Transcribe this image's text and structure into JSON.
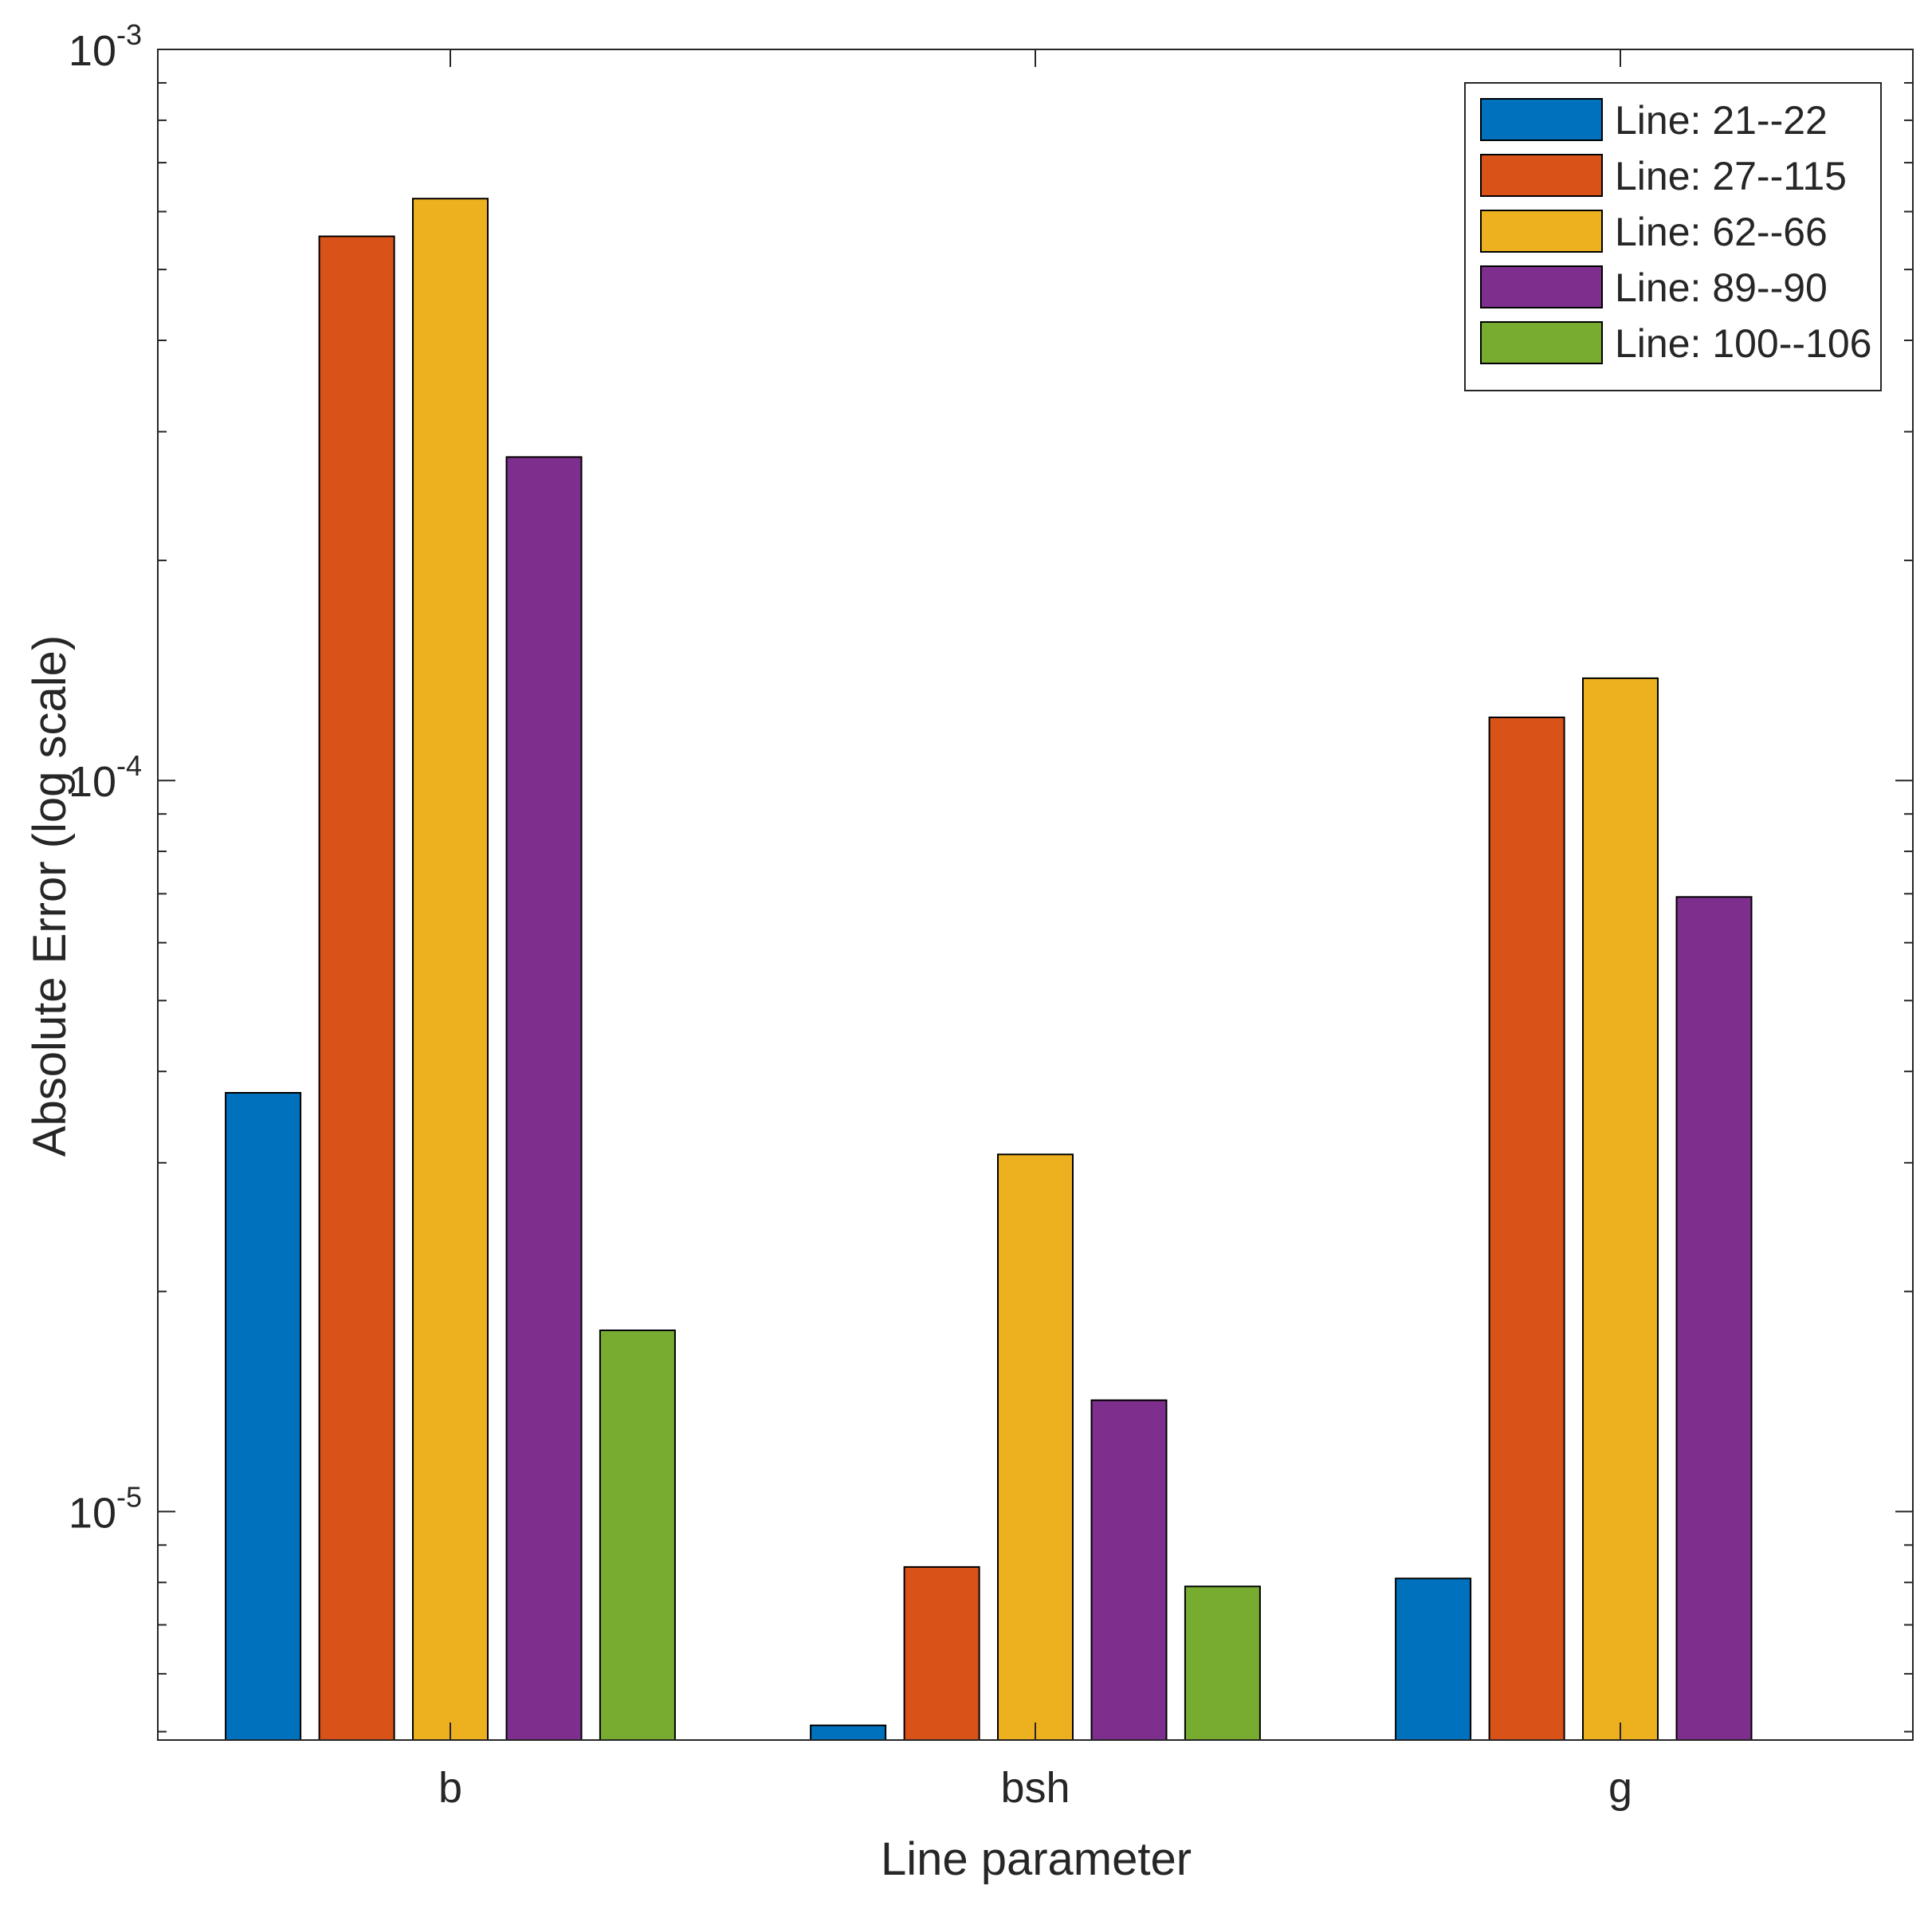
{
  "chart_data": {
    "type": "bar",
    "title": "",
    "xlabel": "Line parameter",
    "ylabel": "Absolute Error (log scale)",
    "yscale": "log",
    "ylim": [
      4.87e-06,
      0.001
    ],
    "yticks": [
      {
        "value": 0.001,
        "base": "10",
        "exp": "-3"
      },
      {
        "value": 0.0001,
        "base": "10",
        "exp": "-4"
      },
      {
        "value": 1e-05,
        "base": "10",
        "exp": "-5"
      }
    ],
    "categories": [
      "b",
      "bsh",
      "g"
    ],
    "legend_position": "top-right",
    "series": [
      {
        "name": "Line:  21--22",
        "color": "#0072BD",
        "values": [
          3.74e-05,
          5.1e-06,
          8.1e-06
        ]
      },
      {
        "name": "Line:  27--115",
        "color": "#D95319",
        "values": [
          0.000555,
          8.4e-06,
          0.000122
        ]
      },
      {
        "name": "Line:  62--66",
        "color": "#EDB120",
        "values": [
          0.000625,
          3.08e-05,
          0.000138
        ]
      },
      {
        "name": "Line:  89--90",
        "color": "#7E2F8E",
        "values": [
          0.000277,
          1.42e-05,
          6.93e-05
        ]
      },
      {
        "name": "Line:  100--106",
        "color": "#77AC30",
        "values": [
          1.77e-05,
          7.9e-06,
          null
        ]
      }
    ]
  }
}
